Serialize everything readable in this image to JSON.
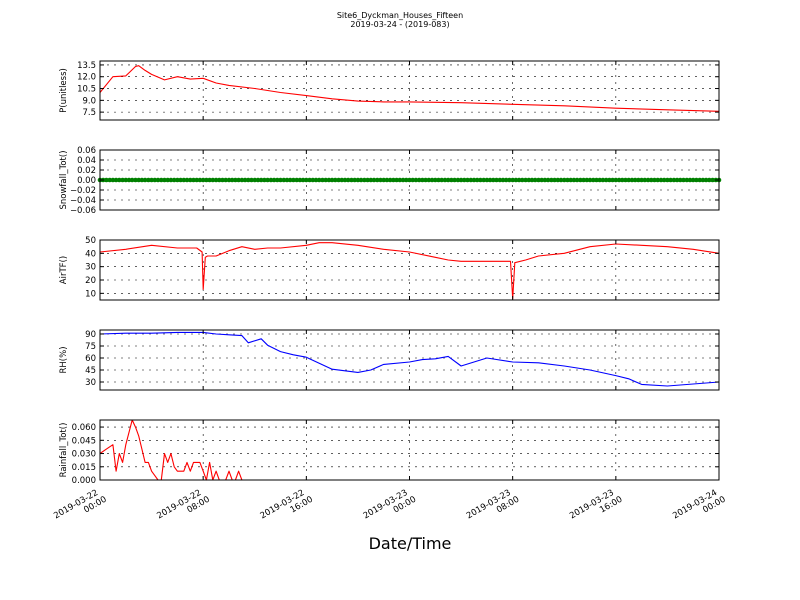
{
  "figure": {
    "title": "Site6_Dyckman_Houses_Fifteen",
    "subtitle": "2019-03-24 - (2019-083)",
    "xlabel": "Date/Time",
    "xticks": [
      {
        "t": 0,
        "lines": [
          "2019-03-22",
          "00:00"
        ]
      },
      {
        "t": 8,
        "lines": [
          "2019-03-22",
          "08:00"
        ]
      },
      {
        "t": 16,
        "lines": [
          "2019-03-22",
          "16:00"
        ]
      },
      {
        "t": 24,
        "lines": [
          "2019-03-23",
          "00:00"
        ]
      },
      {
        "t": 32,
        "lines": [
          "2019-03-23",
          "08:00"
        ]
      },
      {
        "t": 40,
        "lines": [
          "2019-03-23",
          "16:00"
        ]
      },
      {
        "t": 48,
        "lines": [
          "2019-03-24",
          "00:00"
        ]
      }
    ]
  },
  "chart_data": [
    {
      "type": "line",
      "ylabel": "P(unitless)",
      "color": "#ff0000",
      "ylim": [
        6.5,
        14.0
      ],
      "yticks": [
        7.5,
        9.0,
        10.5,
        12.0,
        13.5
      ],
      "ytick_labels": [
        "7.5",
        "9.0",
        "10.5",
        "12.0",
        "13.5"
      ],
      "grid": true,
      "x": [
        "2019-03-22 00:00",
        "2019-03-22 01:00",
        "2019-03-22 02:00",
        "2019-03-22 02:45",
        "2019-03-22 03:00",
        "2019-03-22 03:30",
        "2019-03-22 04:00",
        "2019-03-22 05:00",
        "2019-03-22 06:00",
        "2019-03-22 07:00",
        "2019-03-22 08:00",
        "2019-03-22 09:00",
        "2019-03-22 10:00",
        "2019-03-22 12:00",
        "2019-03-22 14:00",
        "2019-03-22 16:00",
        "2019-03-22 18:00",
        "2019-03-22 20:00",
        "2019-03-22 22:00",
        "2019-03-23 00:00",
        "2019-03-23 04:00",
        "2019-03-23 08:00",
        "2019-03-23 12:00",
        "2019-03-23 16:00",
        "2019-03-23 20:00",
        "2019-03-24 00:00"
      ],
      "values": [
        10.0,
        12.0,
        12.1,
        13.3,
        13.4,
        12.8,
        12.3,
        11.6,
        12.0,
        11.7,
        11.8,
        11.2,
        10.9,
        10.5,
        10.0,
        9.6,
        9.2,
        8.9,
        8.8,
        8.8,
        8.7,
        8.5,
        8.3,
        8.0,
        7.8,
        7.6
      ]
    },
    {
      "type": "scatter",
      "ylabel": "Snowfall_Tot()",
      "color": "#008000",
      "ylim": [
        -0.06,
        0.06
      ],
      "yticks": [
        -0.06,
        -0.04,
        -0.02,
        0.0,
        0.02,
        0.04,
        0.06
      ],
      "ytick_labels": [
        "−0.06",
        "−0.04",
        "−0.02",
        "0.00",
        "0.02",
        "0.04",
        "0.06"
      ],
      "grid": true,
      "x": [
        "2019-03-22 00:00",
        "2019-03-24 00:00"
      ],
      "values": [
        0.0,
        0.0
      ],
      "note_constant": "all samples 0.00"
    },
    {
      "type": "line",
      "ylabel": "AirTF()",
      "color": "#ff0000",
      "ylim": [
        5,
        50
      ],
      "yticks": [
        10,
        20,
        30,
        40,
        50
      ],
      "ytick_labels": [
        "10",
        "20",
        "30",
        "40",
        "50"
      ],
      "grid": true,
      "x": [
        "2019-03-22 00:00",
        "2019-03-22 02:00",
        "2019-03-22 04:00",
        "2019-03-22 06:00",
        "2019-03-22 07:30",
        "2019-03-22 07:55",
        "2019-03-22 08:00",
        "2019-03-22 08:10",
        "2019-03-22 08:20",
        "2019-03-22 09:00",
        "2019-03-22 10:00",
        "2019-03-22 11:00",
        "2019-03-22 12:00",
        "2019-03-22 13:00",
        "2019-03-22 14:00",
        "2019-03-22 16:00",
        "2019-03-22 17:00",
        "2019-03-22 18:00",
        "2019-03-22 20:00",
        "2019-03-22 22:00",
        "2019-03-23 00:00",
        "2019-03-23 02:00",
        "2019-03-23 03:00",
        "2019-03-23 04:00",
        "2019-03-23 06:00",
        "2019-03-23 07:50",
        "2019-03-23 08:00",
        "2019-03-23 08:10",
        "2019-03-23 09:00",
        "2019-03-23 10:00",
        "2019-03-23 12:00",
        "2019-03-23 14:00",
        "2019-03-23 16:00",
        "2019-03-23 18:00",
        "2019-03-23 20:00",
        "2019-03-23 22:00",
        "2019-03-24 00:00"
      ],
      "values": [
        41,
        43,
        46,
        44,
        44,
        41,
        13,
        37,
        38,
        38,
        42,
        45,
        43,
        44,
        44,
        46,
        48,
        48,
        46,
        43,
        41,
        37,
        35,
        34,
        34,
        34,
        6,
        33,
        35,
        38,
        40,
        45,
        47,
        46,
        45,
        43,
        40
      ]
    },
    {
      "type": "line",
      "ylabel": "RH(%)",
      "color": "#0000ff",
      "ylim": [
        20,
        95
      ],
      "yticks": [
        30,
        45,
        60,
        75,
        90
      ],
      "ytick_labels": [
        "30",
        "45",
        "60",
        "75",
        "90"
      ],
      "grid": true,
      "x": [
        "2019-03-22 00:00",
        "2019-03-22 02:00",
        "2019-03-22 04:00",
        "2019-03-22 06:00",
        "2019-03-22 08:00",
        "2019-03-22 09:00",
        "2019-03-22 10:00",
        "2019-03-22 11:00",
        "2019-03-22 11:30",
        "2019-03-22 12:30",
        "2019-03-22 13:00",
        "2019-03-22 14:00",
        "2019-03-22 15:00",
        "2019-03-22 16:00",
        "2019-03-22 18:00",
        "2019-03-22 19:00",
        "2019-03-22 20:00",
        "2019-03-22 21:00",
        "2019-03-22 22:00",
        "2019-03-23 00:00",
        "2019-03-23 01:00",
        "2019-03-23 02:00",
        "2019-03-23 03:00",
        "2019-03-23 04:00",
        "2019-03-23 05:00",
        "2019-03-23 06:00",
        "2019-03-23 08:00",
        "2019-03-23 10:00",
        "2019-03-23 12:00",
        "2019-03-23 14:00",
        "2019-03-23 16:00",
        "2019-03-23 17:00",
        "2019-03-23 18:00",
        "2019-03-23 20:00",
        "2019-03-24 00:00"
      ],
      "values": [
        90,
        91,
        91,
        92,
        92,
        90,
        89,
        88,
        79,
        84,
        76,
        68,
        64,
        61,
        46,
        44,
        42,
        45,
        52,
        55,
        58,
        59,
        62,
        50,
        55,
        60,
        55,
        54,
        50,
        45,
        38,
        34,
        27,
        25,
        30
      ]
    },
    {
      "type": "line",
      "ylabel": "Rainfall_Tot()",
      "color": "#ff0000",
      "ylim": [
        0.0,
        0.068
      ],
      "yticks": [
        0.0,
        0.015,
        0.03,
        0.045,
        0.06
      ],
      "ytick_labels": [
        "0.000",
        "0.015",
        "0.030",
        "0.045",
        "0.060"
      ],
      "grid": true,
      "x": [
        "2019-03-22 00:00",
        "2019-03-22 00:30",
        "2019-03-22 01:00",
        "2019-03-22 01:15",
        "2019-03-22 01:30",
        "2019-03-22 01:45",
        "2019-03-22 02:00",
        "2019-03-22 02:30",
        "2019-03-22 02:45",
        "2019-03-22 03:00",
        "2019-03-22 03:30",
        "2019-03-22 03:45",
        "2019-03-22 04:00",
        "2019-03-22 04:15",
        "2019-03-22 04:30",
        "2019-03-22 04:45",
        "2019-03-22 05:00",
        "2019-03-22 05:15",
        "2019-03-22 05:30",
        "2019-03-22 05:45",
        "2019-03-22 06:00",
        "2019-03-22 06:15",
        "2019-03-22 06:30",
        "2019-03-22 06:45",
        "2019-03-22 07:00",
        "2019-03-22 07:15",
        "2019-03-22 07:30",
        "2019-03-22 07:45",
        "2019-03-22 08:00",
        "2019-03-22 08:15",
        "2019-03-22 08:30",
        "2019-03-22 08:45",
        "2019-03-22 09:00",
        "2019-03-22 09:15",
        "2019-03-22 09:30",
        "2019-03-22 09:45",
        "2019-03-22 10:00",
        "2019-03-22 10:15",
        "2019-03-22 10:30",
        "2019-03-22 10:45",
        "2019-03-22 11:00",
        "2019-03-22 12:00",
        "2019-03-24 00:00"
      ],
      "values": [
        0.03,
        0.035,
        0.04,
        0.01,
        0.03,
        0.02,
        0.04,
        0.068,
        0.06,
        0.05,
        0.02,
        0.02,
        0.01,
        0.005,
        0.0,
        0.0,
        0.03,
        0.02,
        0.03,
        0.015,
        0.01,
        0.01,
        0.01,
        0.02,
        0.01,
        0.02,
        0.02,
        0.02,
        0.01,
        0.0,
        0.02,
        0.0,
        0.01,
        0.0,
        0.0,
        0.0,
        0.01,
        0.0,
        0.0,
        0.01,
        0.0,
        0.0,
        0.0
      ]
    }
  ]
}
